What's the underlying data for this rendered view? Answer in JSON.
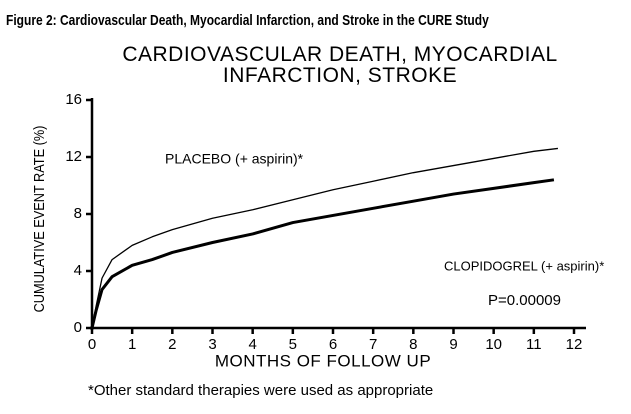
{
  "chart_data": {
    "type": "line",
    "caption": "Figure 2: Cardiovascular Death, Myocardial Infarction, and Stroke in the CURE Study",
    "title": "CARDIOVASCULAR DEATH, MYOCARDIAL INFARCTION, STROKE",
    "x_label": "MONTHS OF FOLLOW UP",
    "y_label": "CUMULATIVE EVENT RATE (%)",
    "xlim": [
      0,
      12
    ],
    "xticks": [
      0,
      1,
      2,
      3,
      4,
      5,
      6,
      7,
      8,
      9,
      10,
      11,
      12
    ],
    "ylim": [
      0,
      16
    ],
    "yticks": [
      0,
      4,
      8,
      12,
      16
    ],
    "grid": false,
    "series": [
      {
        "name": "PLACEBO (+ aspirin)*",
        "color": "#000000",
        "x": [
          0,
          0.1,
          0.25,
          0.5,
          1,
          1.5,
          2,
          3,
          4,
          5,
          6,
          7,
          8,
          9,
          10,
          11,
          11.6
        ],
        "values": [
          0,
          1.5,
          3.5,
          4.8,
          5.8,
          6.4,
          6.9,
          7.7,
          8.3,
          9.0,
          9.7,
          10.3,
          10.9,
          11.4,
          11.9,
          12.4,
          12.6
        ]
      },
      {
        "name": "CLOPIDOGREL (+ aspirin)*",
        "color": "#000000",
        "x": [
          0,
          0.1,
          0.25,
          0.5,
          1,
          1.5,
          2,
          3,
          4,
          5,
          6,
          7,
          8,
          9,
          10,
          11,
          11.5
        ],
        "values": [
          0,
          1.2,
          2.7,
          3.6,
          4.4,
          4.8,
          5.3,
          6.0,
          6.6,
          7.4,
          7.9,
          8.4,
          8.9,
          9.4,
          9.8,
          10.2,
          10.4
        ]
      }
    ],
    "annotations": [
      "P=0.00009",
      "*Other standard therapies were used as appropriate"
    ]
  }
}
